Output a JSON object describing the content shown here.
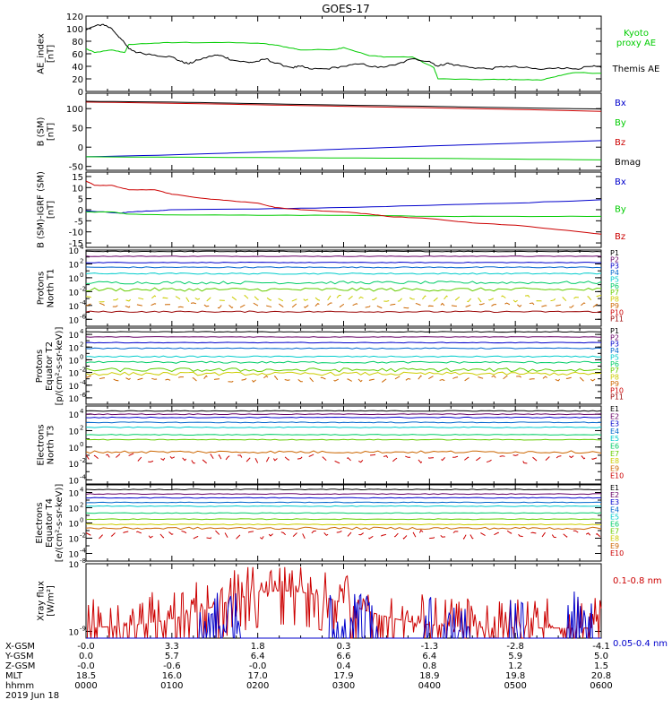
{
  "title": "GOES-17",
  "colors": {
    "black": "#000000",
    "green": "#00cc00",
    "blue": "#0000cc",
    "red": "#cc0000",
    "p_colors": [
      "#000000",
      "#660066",
      "#0000cc",
      "#0066cc",
      "#00cccc",
      "#00cc66",
      "#66cc00",
      "#cccc00",
      "#cc6600",
      "#cc0000",
      "#990000"
    ],
    "e_colors": [
      "#000000",
      "#660066",
      "#0000cc",
      "#0066cc",
      "#00cccc",
      "#00cc66",
      "#66cc00",
      "#cccc00",
      "#cc6600",
      "#cc0000"
    ]
  },
  "chart_data": [
    {
      "id": "ae",
      "type": "line",
      "ylabel": [
        "AE_index",
        "[nT]"
      ],
      "ylim": [
        0,
        120
      ],
      "yticks": [
        "0",
        "20",
        "40",
        "60",
        "80",
        "100",
        "120"
      ],
      "series": [
        {
          "name": "Kyoto proxy AE",
          "label_lines": [
            "Kyoto",
            "proxy AE"
          ],
          "color": "#00cc00",
          "x": [
            0,
            0.1,
            0.3,
            0.45,
            0.5,
            0.8,
            1.1,
            1.5,
            2.0,
            2.2,
            2.4,
            2.5,
            2.9,
            3.0,
            3.3,
            3.5,
            3.8,
            4.05,
            4.1,
            4.5,
            4.8,
            5.0,
            5.3,
            5.5,
            5.7,
            6.0
          ],
          "y": [
            68,
            62,
            66,
            62,
            75,
            77,
            78,
            78,
            77,
            74,
            69,
            66,
            67,
            70,
            57,
            55,
            55,
            38,
            20,
            19,
            19,
            19,
            18,
            25,
            30,
            29
          ]
        },
        {
          "name": "Themis AE",
          "label_lines": [
            "Themis AE"
          ],
          "color": "#000000",
          "x": [
            0,
            0.1,
            0.2,
            0.3,
            0.4,
            0.5,
            0.6,
            0.8,
            1.0,
            1.1,
            1.2,
            1.3,
            1.5,
            1.6,
            1.7,
            1.9,
            2.0,
            2.1,
            2.2,
            2.4,
            2.5,
            2.6,
            2.8,
            3.0,
            3.2,
            3.4,
            3.6,
            3.8,
            4.0,
            4.1,
            4.2,
            4.3,
            4.5,
            4.7,
            4.9,
            5.1,
            5.3,
            5.5,
            5.7,
            5.9,
            6.0
          ],
          "y": [
            98,
            104,
            107,
            100,
            85,
            68,
            62,
            58,
            55,
            48,
            44,
            50,
            58,
            56,
            50,
            46,
            48,
            52,
            45,
            38,
            40,
            36,
            36,
            40,
            44,
            38,
            42,
            52,
            48,
            40,
            45,
            42,
            38,
            36,
            40,
            38,
            35,
            38,
            36,
            40,
            38
          ]
        }
      ]
    },
    {
      "id": "bsm",
      "type": "line",
      "ylabel": [
        "B (SM)",
        "[nT]"
      ],
      "ylim": [
        -60,
        140
      ],
      "yticks": [
        "-50",
        "0",
        "50",
        "100"
      ],
      "series": [
        {
          "name": "Bx",
          "color": "#0000cc",
          "x": [
            0,
            1,
            2,
            3,
            4,
            5,
            6
          ],
          "y": [
            -25,
            -20,
            -13,
            -5,
            3,
            10,
            17
          ]
        },
        {
          "name": "By",
          "color": "#00cc00",
          "x": [
            0,
            1,
            2,
            3,
            4,
            5,
            6
          ],
          "y": [
            -25,
            -26,
            -27,
            -28,
            -29,
            -31,
            -33
          ]
        },
        {
          "name": "Bz",
          "color": "#cc0000",
          "x": [
            0,
            1,
            2,
            3,
            4,
            5,
            6
          ],
          "y": [
            117,
            114,
            110,
            106,
            102,
            98,
            93
          ]
        },
        {
          "name": "Bmag",
          "color": "#000000",
          "x": [
            0,
            1,
            2,
            3,
            4,
            5,
            6
          ],
          "y": [
            119,
            117,
            113,
            109,
            106,
            102,
            99
          ]
        }
      ]
    },
    {
      "id": "bigrf",
      "type": "line",
      "ylabel": [
        "B (SM)-IGRF (SM)",
        "[nT]"
      ],
      "ylim": [
        -17,
        17
      ],
      "yticks": [
        "-15",
        "-10",
        "-5",
        "0",
        "5",
        "10",
        "15"
      ],
      "series": [
        {
          "name": "Bx",
          "color": "#0000cc",
          "x": [
            0,
            0.4,
            0.5,
            0.8,
            1.0,
            2.0,
            3.0,
            4.0,
            5.0,
            6.0
          ],
          "y": [
            -0.5,
            -1.5,
            -1.0,
            -0.5,
            0.0,
            0.3,
            1.0,
            2.0,
            3.0,
            4.5
          ]
        },
        {
          "name": "By",
          "color": "#00cc00",
          "x": [
            0,
            0.3,
            0.5,
            1.0,
            2.0,
            3.0,
            4.0,
            5.0,
            6.0
          ],
          "y": [
            -1,
            -1,
            -2,
            -2.3,
            -2.5,
            -2.5,
            -3,
            -3,
            -3
          ]
        },
        {
          "name": "Bz",
          "color": "#cc0000",
          "x": [
            0,
            0.1,
            0.3,
            0.5,
            0.8,
            1.0,
            1.4,
            1.7,
            2.0,
            2.2,
            2.5,
            3.0,
            3.3,
            3.5,
            4.0,
            4.5,
            5.0,
            5.5,
            6.0
          ],
          "y": [
            13,
            11,
            11,
            9,
            9,
            7,
            5,
            4,
            3,
            1,
            0,
            -1,
            -2,
            -3,
            -4,
            -6,
            -7,
            -9,
            -11
          ]
        }
      ]
    },
    {
      "id": "pn",
      "type": "line",
      "log": true,
      "ylabel": [
        "Protons",
        "North T1"
      ],
      "ylim_exp": [
        -7,
        4
      ],
      "ytick_exps": [
        -6,
        -4,
        -2,
        0,
        2,
        4
      ],
      "channels": [
        "P1",
        "P2",
        "P3",
        "P4",
        "P5",
        "P6",
        "P7",
        "P8",
        "P9",
        "P10",
        "P11"
      ],
      "levels_exp": [
        3.8,
        3.1,
        2.2,
        1.5,
        0.6,
        -0.7,
        -1.7,
        -3.0,
        -4.0,
        null,
        -4.9
      ],
      "noise": [
        0.05,
        0.05,
        0.05,
        0.08,
        0.1,
        0.2,
        0.25,
        0.5,
        0.4,
        0,
        0.1
      ]
    },
    {
      "id": "peq",
      "type": "line",
      "log": true,
      "ylabel": [
        "Protons",
        "Equator T2",
        "[p/(cm²-s-sr-keV)]"
      ],
      "ylim_exp": [
        -7,
        5
      ],
      "ytick_exps": [
        -6,
        -4,
        -2,
        0,
        2,
        4
      ],
      "channels": [
        "P1",
        "P2",
        "P3",
        "P4",
        "P5",
        "P6",
        "P7",
        "P8",
        "P9",
        "P10",
        "P11"
      ],
      "levels_exp": [
        4.4,
        3.6,
        2.7,
        1.8,
        0.5,
        -0.4,
        -1.6,
        -2.2,
        -3.0,
        null,
        null
      ],
      "noise": [
        0.05,
        0.05,
        0.05,
        0.08,
        0.1,
        0.15,
        0.3,
        0.25,
        0.5,
        0,
        0
      ]
    },
    {
      "id": "en",
      "type": "line",
      "log": true,
      "ylabel": [
        "Electrons",
        "North T3"
      ],
      "ylim_exp": [
        -4.5,
        5
      ],
      "ytick_exps": [
        -4,
        -2,
        0,
        2,
        4
      ],
      "channels": [
        "E1",
        "E2",
        "E3",
        "E4",
        "E5",
        "E6",
        "E7",
        "E8",
        "E9",
        "E10"
      ],
      "levels_exp": [
        4.4,
        4.0,
        3.6,
        3.0,
        2.4,
        1.5,
        0.9,
        null,
        -0.6,
        -1.4
      ],
      "noise": [
        0.05,
        0.05,
        0.05,
        0.05,
        0.05,
        0.05,
        0.05,
        0,
        0.15,
        0.6
      ]
    },
    {
      "id": "eeq",
      "type": "line",
      "log": true,
      "ylabel": [
        "Electrons",
        "Equator T4",
        "[e/(cm²-s-sr-keV)]"
      ],
      "ylim_exp": [
        -5,
        5
      ],
      "ytick_exps": [
        -4,
        -2,
        0,
        2,
        4
      ],
      "channels": [
        "E1",
        "E2",
        "E3",
        "E4",
        "E5",
        "E6",
        "E7",
        "E8",
        "E9",
        "E10"
      ],
      "levels_exp": [
        4.4,
        3.8,
        3.3,
        2.7,
        2.2,
        1.3,
        0.5,
        -0.2,
        -0.7,
        -1.5
      ],
      "noise": [
        0.05,
        0.05,
        0.05,
        0.05,
        0.05,
        0.05,
        0.05,
        0.05,
        0.15,
        0.6
      ]
    },
    {
      "id": "xray",
      "type": "line",
      "log": true,
      "ylabel": [
        "Xray flux",
        "[W/m²]"
      ],
      "ylim_exp": [
        -9.1,
        -8
      ],
      "ytick_exps": [
        -9,
        -8
      ],
      "series": [
        {
          "name": "0.1-0.8 nm",
          "color": "#cc0000"
        },
        {
          "name": "0.05-0.4 nm",
          "color": "#0000cc"
        }
      ]
    }
  ],
  "x_axis": {
    "range": [
      0,
      6
    ],
    "rows": [
      {
        "label": "X-GSM",
        "values": [
          "-0.0",
          "3.3",
          "1.8",
          "0.3",
          "-1.3",
          "-2.8",
          "-4.1"
        ]
      },
      {
        "label": "Y-GSM",
        "values": [
          "0.0",
          "5.7",
          "6.4",
          "6.6",
          "6.4",
          "5.9",
          "5.0"
        ]
      },
      {
        "label": "Z-GSM",
        "values": [
          "-0.0",
          "-0.6",
          "-0.0",
          "0.4",
          "0.8",
          "1.2",
          "1.5"
        ]
      },
      {
        "label": "MLT",
        "values": [
          "18.5",
          "16.0",
          "17.0",
          "17.9",
          "18.9",
          "19.8",
          "20.8"
        ]
      },
      {
        "label": "hhmm",
        "values": [
          "0000",
          "0100",
          "0200",
          "0300",
          "0400",
          "0500",
          "0600"
        ]
      }
    ],
    "date": "2019 Jun 18"
  }
}
